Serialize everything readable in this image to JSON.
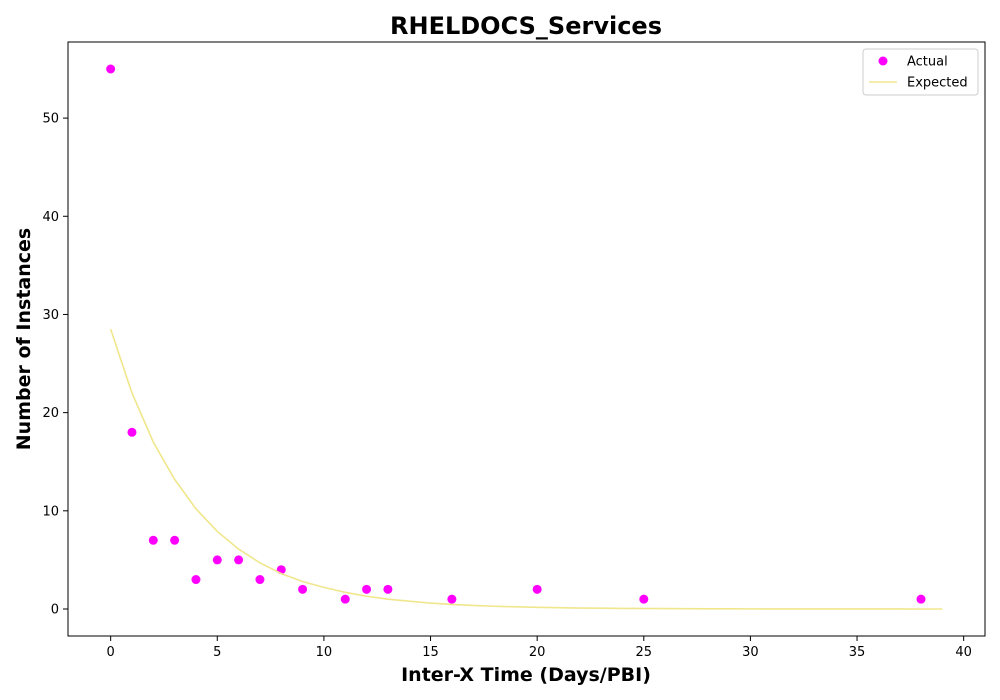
{
  "chart_data": {
    "type": "scatter",
    "title": "RHELDOCS_Services",
    "xlabel": "Inter-X Time (Days/PBI)",
    "ylabel": "Number of Instances",
    "xlim": [
      -2,
      41
    ],
    "ylim": [
      -2.75,
      57.75
    ],
    "xticks": [
      0,
      5,
      10,
      15,
      20,
      25,
      30,
      35,
      40
    ],
    "yticks": [
      0,
      10,
      20,
      30,
      40,
      50
    ],
    "grid": false,
    "legend_position": "top-right",
    "series": [
      {
        "name": "Actual",
        "kind": "scatter",
        "color": "#ff00ff",
        "x": [
          0,
          1,
          2,
          3,
          4,
          5,
          6,
          7,
          8,
          9,
          11,
          12,
          13,
          16,
          20,
          25,
          38
        ],
        "y": [
          55,
          18,
          7,
          7,
          3,
          5,
          5,
          3,
          4,
          2,
          1,
          2,
          2,
          1,
          2,
          1,
          1
        ]
      },
      {
        "name": "Expected",
        "kind": "line",
        "color": "#f0e68c",
        "x": [
          0,
          1,
          2,
          3,
          4,
          5,
          6,
          7,
          8,
          9,
          10,
          11,
          12,
          13,
          14,
          15,
          16,
          17,
          18,
          19,
          20,
          21,
          22,
          23,
          24,
          25,
          26,
          27,
          28,
          29,
          30,
          31,
          32,
          33,
          34,
          35,
          36,
          37,
          38,
          39
        ],
        "y": [
          28.5,
          22.0,
          17.0,
          13.2,
          10.2,
          7.9,
          6.1,
          4.7,
          3.6,
          2.8,
          2.2,
          1.7,
          1.3,
          1.0,
          0.8,
          0.6,
          0.47,
          0.36,
          0.28,
          0.22,
          0.17,
          0.13,
          0.1,
          0.08,
          0.06,
          0.05,
          0.04,
          0.03,
          0.02,
          0.015,
          0.012,
          0.009,
          0.007,
          0.005,
          0.004,
          0.003,
          0.002,
          0.002,
          0.001,
          0.001
        ]
      }
    ]
  }
}
